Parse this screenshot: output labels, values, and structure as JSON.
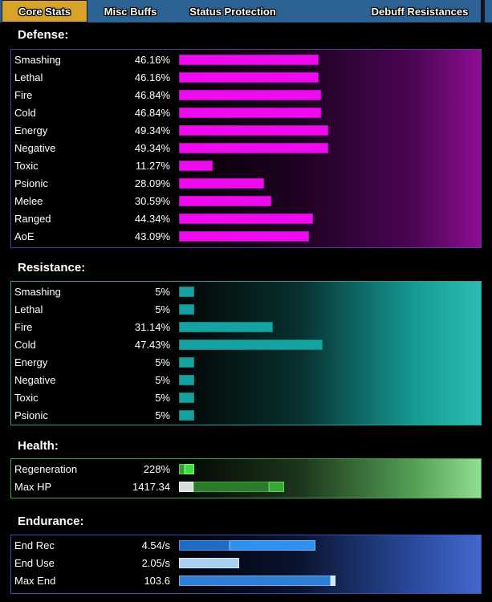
{
  "window_title": "Core Stats",
  "tabs": {
    "items": [
      {
        "label": "Core Stats",
        "active": true
      },
      {
        "label": "Misc Buffs",
        "active": false
      },
      {
        "label": "Status Protection",
        "active": false
      },
      {
        "label": "Debuff Resistances",
        "active": false
      }
    ],
    "bar_color": "#2d6394",
    "active_color": "#d9a32a"
  },
  "sections": [
    {
      "name": "defense",
      "title": "Defense:",
      "border": "#5d35a0",
      "gradient": [
        "#070008",
        "#1e0222",
        "#4c0554",
        "#8c0e92"
      ],
      "bar_fill": "#f00af0",
      "bar_border": "#b60ab6",
      "rows": [
        {
          "label": "Smashing",
          "value": "46.16%",
          "pct": 46.16
        },
        {
          "label": "Lethal",
          "value": "46.16%",
          "pct": 46.16
        },
        {
          "label": "Fire",
          "value": "46.84%",
          "pct": 46.84
        },
        {
          "label": "Cold",
          "value": "46.84%",
          "pct": 46.84
        },
        {
          "label": "Energy",
          "value": "49.34%",
          "pct": 49.34
        },
        {
          "label": "Negative",
          "value": "49.34%",
          "pct": 49.34
        },
        {
          "label": "Toxic",
          "value": "11.27%",
          "pct": 11.27
        },
        {
          "label": "Psionic",
          "value": "28.09%",
          "pct": 28.09
        },
        {
          "label": "Melee",
          "value": "30.59%",
          "pct": 30.59
        },
        {
          "label": "Ranged",
          "value": "44.34%",
          "pct": 44.34
        },
        {
          "label": "AoE",
          "value": "43.09%",
          "pct": 43.09
        }
      ]
    },
    {
      "name": "resistance",
      "title": "Resistance:",
      "border": "#2f9e99",
      "gradient": [
        "#020606",
        "#07302e",
        "#159a94",
        "#2cbcb4"
      ],
      "bar_fill": "#14a2a2",
      "bar_border": "#0e8181",
      "rows": [
        {
          "label": "Smashing",
          "value": "5%",
          "pct": 5
        },
        {
          "label": "Lethal",
          "value": "5%",
          "pct": 5
        },
        {
          "label": "Fire",
          "value": "31.14%",
          "pct": 31.14
        },
        {
          "label": "Cold",
          "value": "47.43%",
          "pct": 47.43
        },
        {
          "label": "Energy",
          "value": "5%",
          "pct": 5
        },
        {
          "label": "Negative",
          "value": "5%",
          "pct": 5
        },
        {
          "label": "Toxic",
          "value": "5%",
          "pct": 5
        },
        {
          "label": "Psionic",
          "value": "5%",
          "pct": 5
        }
      ]
    },
    {
      "name": "health",
      "title": "Health:",
      "border": "#46a44a",
      "gradient": [
        "#030703",
        "#1c351c",
        "#55a055",
        "#92de92"
      ],
      "rows": [
        {
          "label": "Regeneration",
          "value": "228%",
          "segments": [
            {
              "w": 7,
              "fill": "#2f9e2f",
              "border": "#5cc95c"
            },
            {
              "w": 12,
              "fill": "#3bdc3b",
              "border": "#8af08a"
            }
          ]
        },
        {
          "label": "Max HP",
          "value": "1417.34",
          "segments": [
            {
              "w": 18,
              "fill": "#dcdcdc",
              "border": "#f2f2f2"
            },
            {
              "w": 94,
              "fill": "#2a7c2a",
              "border": "#4da04d"
            },
            {
              "w": 19,
              "fill": "#36aa36",
              "border": "#63cc63"
            }
          ]
        }
      ]
    },
    {
      "name": "endurance",
      "title": "Endurance:",
      "border": "#3053b5",
      "gradient": [
        "#020208",
        "#0a1430",
        "#2a4a9c",
        "#4268cc"
      ],
      "rows": [
        {
          "label": "End Rec",
          "value": "4.54/s",
          "segments": [
            {
              "w": 63,
              "fill": "#1f6cc4",
              "border": "#4e93d9"
            },
            {
              "w": 107,
              "fill": "#2e90f0",
              "border": "#6fb4f5"
            }
          ]
        },
        {
          "label": "End Use",
          "value": "2.05/s",
          "segments": [
            {
              "w": 75,
              "fill": "#a9cff0",
              "border": "#d4e7f8"
            }
          ]
        },
        {
          "label": "Max End",
          "value": "103.6",
          "segments": [
            {
              "w": 189,
              "fill": "#2f7ed6",
              "border": "#6da9e4"
            },
            {
              "w": 6,
              "fill": "#cfe4f7",
              "border": "#eaf3fb"
            }
          ]
        }
      ]
    }
  ]
}
